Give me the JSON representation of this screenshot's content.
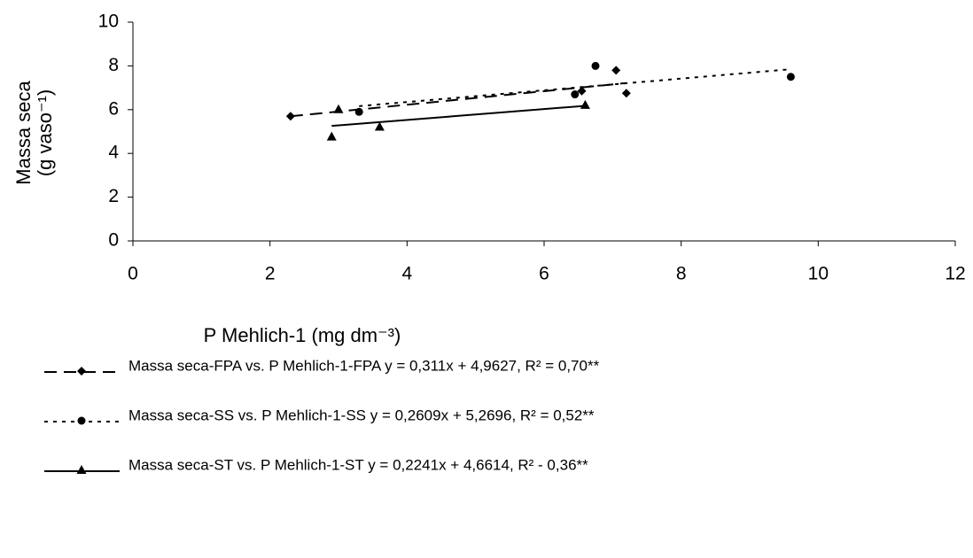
{
  "chart_data": {
    "type": "scatter",
    "x_label": "P Mehlich-1 (mg dm⁻³)",
    "y_label": [
      "Massa seca",
      "(g vaso⁻¹)"
    ],
    "xlim": [
      0,
      12
    ],
    "xticks": [
      0,
      2,
      4,
      6,
      8,
      10,
      12
    ],
    "ylim": [
      0,
      10
    ],
    "yticks": [
      0,
      2,
      4,
      6,
      8,
      10
    ],
    "grid": false,
    "trendline": true,
    "legend": "bottom",
    "series": [
      {
        "name": "Massa seca-FPA vs. P Mehlich-1-FPA y = 0,311x + 4,9627, R² = 0,70**",
        "color": "#000000",
        "marker": "diamond",
        "dash": "dashed",
        "x": [
          2.3,
          6.55,
          7.05,
          7.2
        ],
        "values": [
          5.7,
          6.85,
          7.8,
          6.75
        ]
      },
      {
        "name": "Massa seca-SS vs. P Mehlich-1-SS y = 0,2609x + 5,2696, R² = 0,52**",
        "color": "#000000",
        "marker": "circle",
        "dash": "dotted",
        "x": [
          3.3,
          6.45,
          6.75,
          9.6
        ],
        "values": [
          5.9,
          6.7,
          8.0,
          7.5
        ]
      },
      {
        "name": "Massa seca-ST vs. P Mehlich-1-ST y = 0,2241x + 4,6614, R² - 0,36**",
        "color": "#000000",
        "marker": "triangle",
        "dash": "solid",
        "x": [
          2.9,
          3.0,
          3.6,
          6.6
        ],
        "values": [
          4.75,
          6.0,
          5.2,
          6.2
        ]
      }
    ]
  }
}
